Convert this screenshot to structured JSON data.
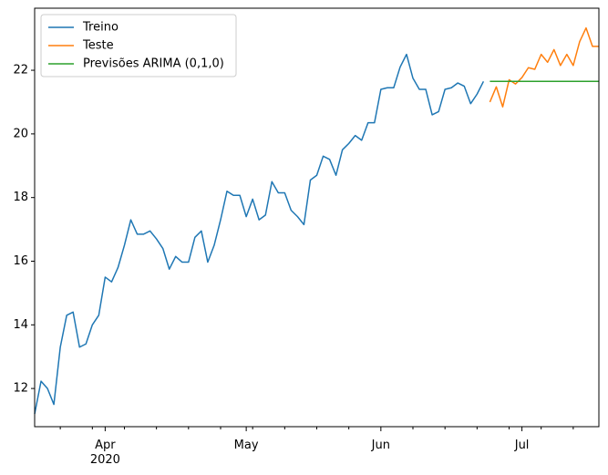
{
  "chart_data": {
    "type": "line",
    "categories": [
      null,
      null,
      null,
      null,
      null,
      null,
      null,
      null,
      null,
      null,
      null,
      "Apr\n2020",
      null,
      null,
      null,
      null,
      null,
      null,
      null,
      null,
      null,
      null,
      null,
      null,
      null,
      null,
      null,
      null,
      null,
      null,
      null,
      null,
      null,
      "May",
      null,
      null,
      null,
      null,
      null,
      null,
      null,
      null,
      null,
      null,
      null,
      null,
      null,
      null,
      null,
      null,
      null,
      null,
      null,
      null,
      "Jun",
      null,
      null,
      null,
      null,
      null,
      null,
      null,
      null,
      null,
      null,
      null,
      null,
      null,
      null,
      null,
      null,
      null,
      null,
      null,
      null,
      null,
      "Jul",
      null,
      null,
      null,
      null,
      null,
      null,
      null,
      null,
      null,
      null,
      null,
      null
    ],
    "series": [
      {
        "name": "Treino",
        "color": "#1f77b4",
        "values": [
          11.2,
          12.23,
          12.0,
          11.5,
          13.3,
          14.3,
          14.4,
          13.3,
          13.4,
          14.0,
          14.3,
          15.5,
          15.35,
          15.8,
          16.5,
          17.3,
          16.85,
          16.85,
          16.95,
          16.7,
          16.4,
          15.75,
          16.15,
          15.97,
          15.97,
          16.75,
          16.95,
          15.97,
          16.5,
          17.3,
          18.2,
          18.07,
          18.07,
          17.4,
          17.95,
          17.3,
          17.45,
          18.5,
          18.15,
          18.15,
          17.6,
          17.4,
          17.15,
          18.55,
          18.7,
          19.3,
          19.2,
          18.7,
          19.5,
          19.7,
          19.95,
          19.8,
          20.35,
          20.35,
          21.4,
          21.45,
          21.45,
          22.1,
          22.5,
          21.75,
          21.4,
          21.4,
          20.6,
          20.7,
          21.4,
          21.45,
          21.6,
          21.5,
          20.95,
          21.25,
          21.65,
          null,
          null,
          null,
          null,
          null,
          null,
          null,
          null,
          null,
          null,
          null,
          null,
          null,
          null,
          null,
          null,
          null,
          null
        ]
      },
      {
        "name": "Teste",
        "color": "#ff7f0e",
        "values": [
          null,
          null,
          null,
          null,
          null,
          null,
          null,
          null,
          null,
          null,
          null,
          null,
          null,
          null,
          null,
          null,
          null,
          null,
          null,
          null,
          null,
          null,
          null,
          null,
          null,
          null,
          null,
          null,
          null,
          null,
          null,
          null,
          null,
          null,
          null,
          null,
          null,
          null,
          null,
          null,
          null,
          null,
          null,
          null,
          null,
          null,
          null,
          null,
          null,
          null,
          null,
          null,
          null,
          null,
          null,
          null,
          null,
          null,
          null,
          null,
          null,
          null,
          null,
          null,
          null,
          null,
          null,
          null,
          null,
          null,
          null,
          21.0,
          21.48,
          20.85,
          21.7,
          21.57,
          21.77,
          22.08,
          22.03,
          22.5,
          22.25,
          22.65,
          22.15,
          22.5,
          22.15,
          22.9,
          23.33,
          22.75,
          22.75
        ]
      },
      {
        "name": "Previsões ARIMA (0,1,0)",
        "color": "#2ca02c",
        "values": [
          null,
          null,
          null,
          null,
          null,
          null,
          null,
          null,
          null,
          null,
          null,
          null,
          null,
          null,
          null,
          null,
          null,
          null,
          null,
          null,
          null,
          null,
          null,
          null,
          null,
          null,
          null,
          null,
          null,
          null,
          null,
          null,
          null,
          null,
          null,
          null,
          null,
          null,
          null,
          null,
          null,
          null,
          null,
          null,
          null,
          null,
          null,
          null,
          null,
          null,
          null,
          null,
          null,
          null,
          null,
          null,
          null,
          null,
          null,
          null,
          null,
          null,
          null,
          null,
          null,
          null,
          null,
          null,
          null,
          null,
          null,
          21.65,
          21.65,
          21.65,
          21.65,
          21.65,
          21.65,
          21.65,
          21.65,
          21.65,
          21.65,
          21.65,
          21.65,
          21.65,
          21.65,
          21.65,
          21.65,
          21.65,
          21.65
        ]
      }
    ],
    "ylim": [
      10.8,
      23.95
    ],
    "yticks": [
      12,
      14,
      16,
      18,
      20,
      22
    ],
    "grid": false,
    "legend": "upper left"
  }
}
